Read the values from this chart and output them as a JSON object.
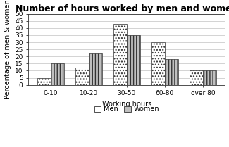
{
  "title": "Number of hours worked by men and women",
  "xlabel": "Working hours",
  "ylabel": "Percentage of men & women",
  "categories": [
    "0-10",
    "10-20",
    "30-50",
    "60-80",
    "over 80"
  ],
  "men_values": [
    5,
    12,
    43,
    30,
    10
  ],
  "women_values": [
    15,
    22,
    35,
    18,
    10
  ],
  "ylim": [
    0,
    50
  ],
  "yticks": [
    0,
    5,
    10,
    15,
    20,
    25,
    30,
    35,
    40,
    45,
    50
  ],
  "bar_width": 0.35,
  "men_color": "white",
  "men_hatch": "....",
  "women_color": "#c0c0c0",
  "women_hatch": "||||",
  "edge_color": "#333333",
  "title_fontsize": 9,
  "label_fontsize": 7,
  "tick_fontsize": 6.5,
  "legend_fontsize": 7,
  "background_color": "#ffffff"
}
